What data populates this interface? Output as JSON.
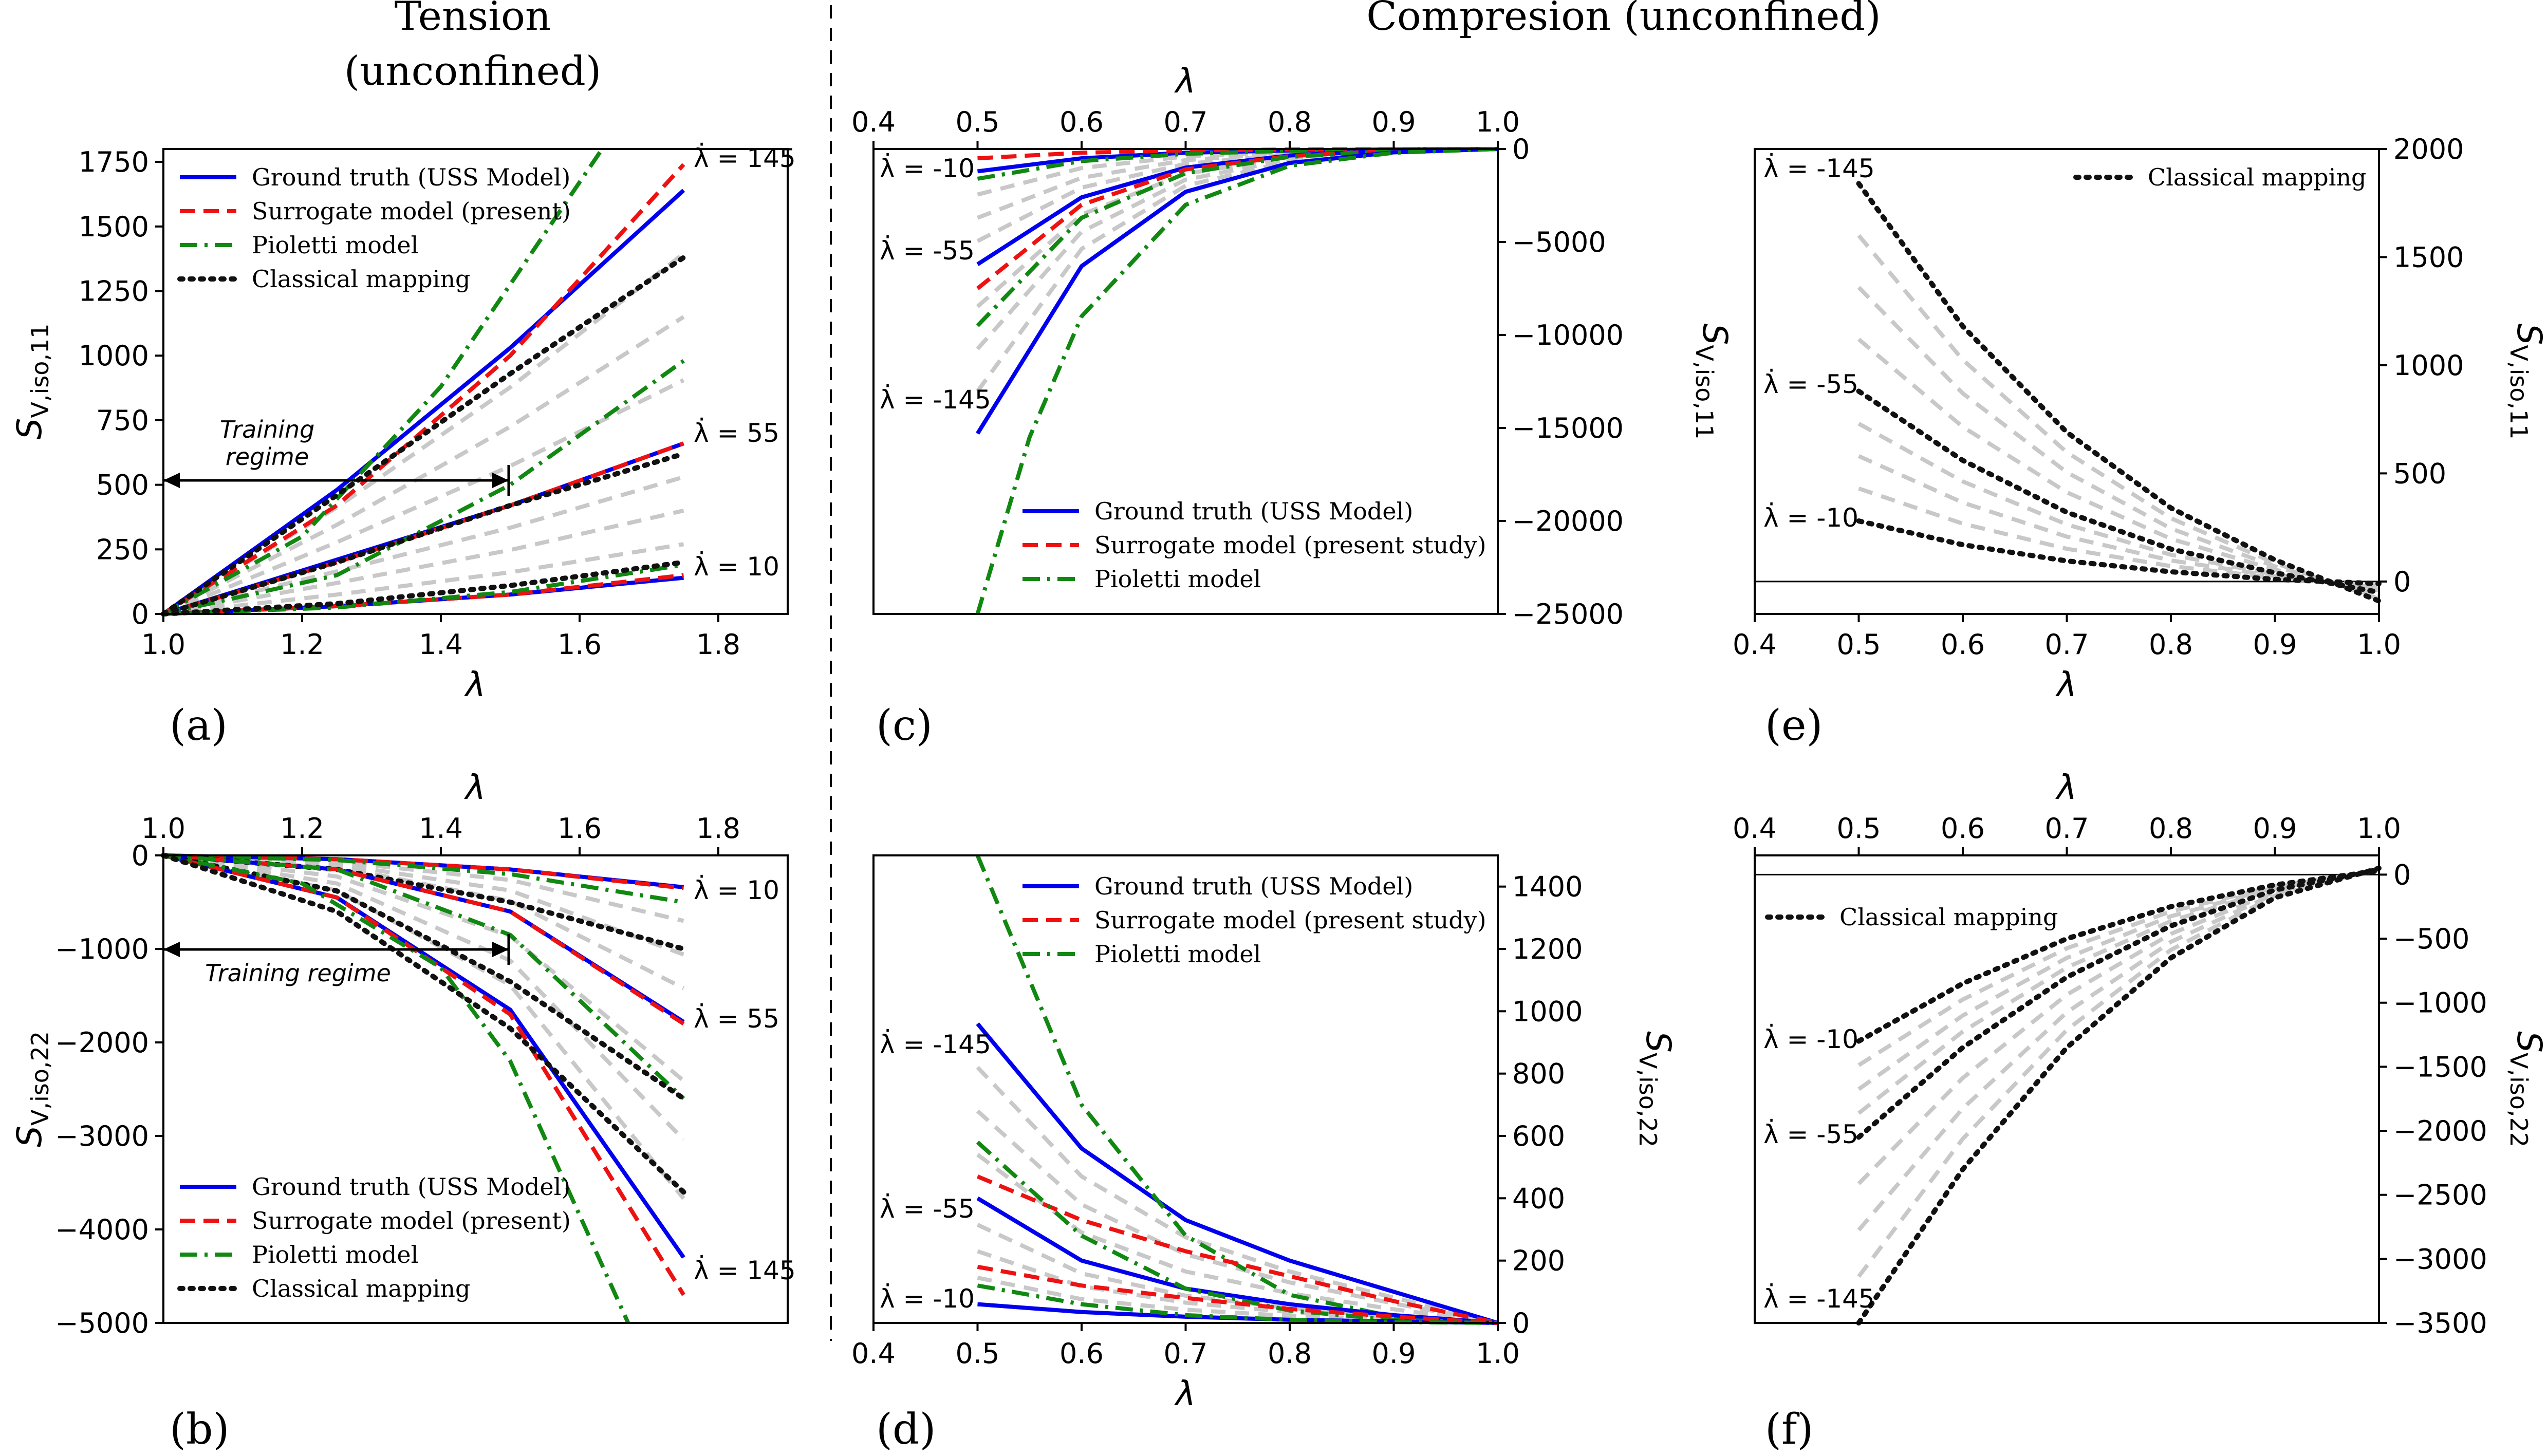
{
  "headings": {
    "tension_line1": "Tension",
    "tension_line2": "(unconfined)",
    "compression": "Compresion (unconfined)"
  },
  "panel_labels": [
    "(a)",
    "(b)",
    "(c)",
    "(d)",
    "(e)",
    "(f)"
  ],
  "legend_labels": {
    "gt": "Ground truth (USS Model)",
    "sur_short": "Surrogate model (present)",
    "sur_long": "Surrogate model (present study)",
    "pio": "Pioletti model",
    "cls": "Classical mapping"
  },
  "annotations": {
    "training_regime": "Training regime",
    "training_word": "Training",
    "regime_word": "regime"
  },
  "colors": {
    "gt": "#0000ee",
    "sur": "#ee1111",
    "pio": "#118811",
    "cls": "#111111",
    "faint": "#c8c8c8"
  },
  "chart_data": [
    {
      "id": "a",
      "type": "line",
      "xlabel": "λ",
      "ylabel": "S_V,iso,11",
      "xlim": [
        1.0,
        1.9
      ],
      "ylim": [
        0,
        1800
      ],
      "xticks": [
        "1.0",
        "1.2",
        "1.4",
        "1.6",
        "1.8"
      ],
      "yticks": [
        "0",
        "250",
        "500",
        "750",
        "1000",
        "1250",
        "1500",
        "1750"
      ],
      "rate_labels": [
        "λ̇ = 145",
        "λ̇ = 55",
        "λ̇ = 10"
      ],
      "series": [
        {
          "name": "Ground truth (USS Model)",
          "rate": 145,
          "x": [
            1.0,
            1.25,
            1.5,
            1.75
          ],
          "y": [
            0,
            480,
            1030,
            1640
          ]
        },
        {
          "name": "Surrogate model (present)",
          "rate": 145,
          "x": [
            1.0,
            1.25,
            1.5,
            1.75
          ],
          "y": [
            0,
            420,
            1000,
            1740
          ]
        },
        {
          "name": "Pioletti model",
          "rate": 145,
          "x": [
            1.0,
            1.2,
            1.4,
            1.63
          ],
          "y": [
            0,
            300,
            880,
            1790
          ]
        },
        {
          "name": "Classical mapping",
          "rate": 145,
          "x": [
            1.0,
            1.25,
            1.5,
            1.75
          ],
          "y": [
            0,
            460,
            930,
            1380
          ]
        },
        {
          "name": "Ground truth (USS Model)",
          "rate": 55,
          "x": [
            1.0,
            1.25,
            1.5,
            1.75
          ],
          "y": [
            0,
            210,
            420,
            660
          ]
        },
        {
          "name": "Surrogate model (present)",
          "rate": 55,
          "x": [
            1.0,
            1.25,
            1.5,
            1.75
          ],
          "y": [
            0,
            200,
            420,
            660
          ]
        },
        {
          "name": "Pioletti model",
          "rate": 55,
          "x": [
            1.0,
            1.25,
            1.5,
            1.75
          ],
          "y": [
            0,
            150,
            500,
            980
          ]
        },
        {
          "name": "Classical mapping",
          "rate": 55,
          "x": [
            1.0,
            1.25,
            1.5,
            1.75
          ],
          "y": [
            0,
            200,
            420,
            620
          ]
        },
        {
          "name": "Ground truth (USS Model)",
          "rate": 10,
          "x": [
            1.0,
            1.25,
            1.5,
            1.75
          ],
          "y": [
            0,
            30,
            75,
            140
          ]
        },
        {
          "name": "Surrogate model (present)",
          "rate": 10,
          "x": [
            1.0,
            1.25,
            1.5,
            1.75
          ],
          "y": [
            0,
            30,
            75,
            150
          ]
        },
        {
          "name": "Pioletti model",
          "rate": 10,
          "x": [
            1.0,
            1.25,
            1.5,
            1.75
          ],
          "y": [
            0,
            25,
            85,
            190
          ]
        },
        {
          "name": "Classical mapping",
          "rate": 10,
          "x": [
            1.0,
            1.25,
            1.5,
            1.75
          ],
          "y": [
            0,
            40,
            110,
            200
          ]
        }
      ]
    },
    {
      "id": "b",
      "type": "line",
      "xlabel": "λ",
      "ylabel": "S_V,iso,22",
      "xlim": [
        1.0,
        1.9
      ],
      "ylim": [
        -5000,
        0
      ],
      "xticks": [
        "1.0",
        "1.2",
        "1.4",
        "1.6",
        "1.8"
      ],
      "yticks": [
        "−5000",
        "−4000",
        "−3000",
        "−2000",
        "−1000",
        "0"
      ],
      "rate_labels": [
        "λ̇ = 10",
        "λ̇ = 55",
        "λ̇ = 145"
      ],
      "series": [
        {
          "name": "Ground truth (USS Model)",
          "rate": 10,
          "x": [
            1.0,
            1.25,
            1.5,
            1.75
          ],
          "y": [
            0,
            -40,
            -150,
            -340
          ]
        },
        {
          "name": "Surrogate model (present)",
          "rate": 10,
          "x": [
            1.0,
            1.25,
            1.5,
            1.75
          ],
          "y": [
            0,
            -40,
            -150,
            -350
          ]
        },
        {
          "name": "Pioletti model",
          "rate": 10,
          "x": [
            1.0,
            1.25,
            1.5,
            1.75
          ],
          "y": [
            0,
            -50,
            -200,
            -500
          ]
        },
        {
          "name": "Classical mapping",
          "rate": 10,
          "x": [
            1.0,
            1.25,
            1.5,
            1.75
          ],
          "y": [
            0,
            -150,
            -500,
            -1000
          ]
        },
        {
          "name": "Ground truth (USS Model)",
          "rate": 55,
          "x": [
            1.0,
            1.25,
            1.5,
            1.75
          ],
          "y": [
            0,
            -150,
            -600,
            -1780
          ]
        },
        {
          "name": "Surrogate model (present)",
          "rate": 55,
          "x": [
            1.0,
            1.25,
            1.5,
            1.75
          ],
          "y": [
            0,
            -150,
            -600,
            -1800
          ]
        },
        {
          "name": "Pioletti model",
          "rate": 55,
          "x": [
            1.0,
            1.25,
            1.5,
            1.75
          ],
          "y": [
            0,
            -150,
            -850,
            -2600
          ]
        },
        {
          "name": "Classical mapping",
          "rate": 55,
          "x": [
            1.0,
            1.25,
            1.5,
            1.75
          ],
          "y": [
            0,
            -380,
            -1350,
            -2600
          ]
        },
        {
          "name": "Ground truth (USS Model)",
          "rate": 145,
          "x": [
            1.0,
            1.25,
            1.5,
            1.75
          ],
          "y": [
            0,
            -450,
            -1650,
            -4300
          ]
        },
        {
          "name": "Surrogate model (present)",
          "rate": 145,
          "x": [
            1.0,
            1.25,
            1.5,
            1.75
          ],
          "y": [
            0,
            -450,
            -1700,
            -4700
          ]
        },
        {
          "name": "Pioletti model",
          "rate": 145,
          "x": [
            1.0,
            1.2,
            1.4,
            1.5,
            1.67
          ],
          "y": [
            0,
            -300,
            -1200,
            -2200,
            -5000
          ]
        },
        {
          "name": "Classical mapping",
          "rate": 145,
          "x": [
            1.0,
            1.25,
            1.5,
            1.75
          ],
          "y": [
            0,
            -600,
            -1850,
            -3600
          ]
        }
      ]
    },
    {
      "id": "c",
      "type": "line",
      "xlabel": "λ",
      "ylabel": "S_V,iso,11",
      "xlim": [
        0.4,
        1.0
      ],
      "ylim": [
        -25000,
        0
      ],
      "xticks": [
        "0.4",
        "0.5",
        "0.6",
        "0.7",
        "0.8",
        "0.9",
        "1.0"
      ],
      "yticks": [
        "−25000",
        "−20000",
        "−15000",
        "−10000",
        "−5000",
        "0"
      ],
      "rate_labels": [
        "λ̇ = -10",
        "λ̇ = -55",
        "λ̇ = -145"
      ],
      "series": [
        {
          "name": "Ground truth (USS Model)",
          "rate": -10,
          "x": [
            0.5,
            0.6,
            0.7,
            0.8,
            0.9,
            1.0
          ],
          "y": [
            -1200,
            -500,
            -200,
            -80,
            -20,
            0
          ]
        },
        {
          "name": "Surrogate model (present study)",
          "rate": -10,
          "x": [
            0.5,
            0.6,
            0.7,
            0.8,
            0.9,
            1.0
          ],
          "y": [
            -500,
            -200,
            -80,
            -30,
            -10,
            0
          ]
        },
        {
          "name": "Pioletti model",
          "rate": -10,
          "x": [
            0.5,
            0.6,
            0.7,
            0.8,
            0.9,
            1.0
          ],
          "y": [
            -1600,
            -650,
            -260,
            -100,
            -30,
            0
          ]
        },
        {
          "name": "Ground truth (USS Model)",
          "rate": -55,
          "x": [
            0.5,
            0.6,
            0.7,
            0.8,
            0.9,
            1.0
          ],
          "y": [
            -6200,
            -2600,
            -1000,
            -350,
            -80,
            0
          ]
        },
        {
          "name": "Surrogate model (present study)",
          "rate": -55,
          "x": [
            0.5,
            0.6,
            0.7,
            0.8,
            0.9,
            1.0
          ],
          "y": [
            -7500,
            -3000,
            -1100,
            -380,
            -90,
            0
          ]
        },
        {
          "name": "Pioletti model",
          "rate": -55,
          "x": [
            0.5,
            0.6,
            0.7,
            0.8,
            0.9,
            1.0
          ],
          "y": [
            -9500,
            -3700,
            -1300,
            -420,
            -100,
            0
          ]
        },
        {
          "name": "Ground truth (USS Model)",
          "rate": -145,
          "x": [
            0.5,
            0.6,
            0.7,
            0.8,
            0.9,
            1.0
          ],
          "y": [
            -15300,
            -6300,
            -2300,
            -750,
            -180,
            0
          ]
        },
        {
          "name": "Pioletti model",
          "rate": -145,
          "x": [
            0.5,
            0.55,
            0.6,
            0.7,
            0.8,
            0.9,
            1.0
          ],
          "y": [
            -25000,
            -15500,
            -9000,
            -3000,
            -900,
            -200,
            0
          ]
        }
      ]
    },
    {
      "id": "d",
      "type": "line",
      "xlabel": "λ",
      "ylabel": "S_V,iso,22",
      "xlim": [
        0.4,
        1.0
      ],
      "ylim": [
        0,
        1500
      ],
      "xticks": [
        "0.4",
        "0.5",
        "0.6",
        "0.7",
        "0.8",
        "0.9",
        "1.0"
      ],
      "yticks": [
        "0",
        "200",
        "400",
        "600",
        "800",
        "1000",
        "1200",
        "1400"
      ],
      "rate_labels": [
        "λ̇ = -145",
        "λ̇ = -55",
        "λ̇ = -10"
      ],
      "series": [
        {
          "name": "Ground truth (USS Model)",
          "rate": -145,
          "x": [
            0.5,
            0.6,
            0.7,
            0.8,
            0.9,
            1.0
          ],
          "y": [
            960,
            560,
            330,
            200,
            100,
            0
          ]
        },
        {
          "name": "Pioletti model",
          "rate": -145,
          "x": [
            0.5,
            0.6,
            0.7,
            0.8,
            0.9,
            1.0
          ],
          "y": [
            1500,
            700,
            280,
            90,
            20,
            0
          ]
        },
        {
          "name": "Ground truth (USS Model)",
          "rate": -55,
          "x": [
            0.5,
            0.6,
            0.7,
            0.8,
            0.9,
            1.0
          ],
          "y": [
            400,
            200,
            110,
            60,
            25,
            0
          ]
        },
        {
          "name": "Surrogate model (present study)",
          "rate": -55,
          "x": [
            0.5,
            0.6,
            0.7,
            0.8,
            0.9,
            1.0
          ],
          "y": [
            470,
            330,
            230,
            150,
            70,
            0
          ]
        },
        {
          "name": "Pioletti model",
          "rate": -55,
          "x": [
            0.5,
            0.6,
            0.7,
            0.8,
            0.9,
            1.0
          ],
          "y": [
            580,
            280,
            110,
            40,
            10,
            0
          ]
        },
        {
          "name": "Ground truth (USS Model)",
          "rate": -10,
          "x": [
            0.5,
            0.6,
            0.7,
            0.8,
            0.9,
            1.0
          ],
          "y": [
            60,
            35,
            20,
            10,
            5,
            0
          ]
        },
        {
          "name": "Surrogate model (present study)",
          "rate": -10,
          "x": [
            0.5,
            0.6,
            0.7,
            0.8,
            0.9,
            1.0
          ],
          "y": [
            180,
            120,
            80,
            45,
            20,
            0
          ]
        },
        {
          "name": "Pioletti model",
          "rate": -10,
          "x": [
            0.5,
            0.6,
            0.7,
            0.8,
            0.9,
            1.0
          ],
          "y": [
            120,
            60,
            25,
            10,
            3,
            0
          ]
        }
      ]
    },
    {
      "id": "e",
      "type": "line",
      "xlabel": "λ",
      "ylabel": "S_V,iso,11",
      "xlim": [
        0.4,
        1.0
      ],
      "ylim": [
        -150,
        2000
      ],
      "xticks": [
        "0.4",
        "0.5",
        "0.6",
        "0.7",
        "0.8",
        "0.9",
        "1.0"
      ],
      "yticks": [
        "0",
        "500",
        "1000",
        "1500",
        "2000"
      ],
      "rate_labels": [
        "λ̇ = -145",
        "λ̇ = -55",
        "λ̇ = -10"
      ],
      "series": [
        {
          "name": "Classical mapping",
          "rate": -145,
          "x": [
            0.5,
            0.6,
            0.7,
            0.8,
            0.9,
            1.0
          ],
          "y": [
            1840,
            1180,
            690,
            340,
            100,
            -90
          ]
        },
        {
          "name": "Classical mapping",
          "rate": -55,
          "x": [
            0.5,
            0.6,
            0.7,
            0.8,
            0.9,
            1.0
          ],
          "y": [
            880,
            560,
            320,
            150,
            40,
            -50
          ]
        },
        {
          "name": "Classical mapping",
          "rate": -10,
          "x": [
            0.5,
            0.6,
            0.7,
            0.8,
            0.9,
            1.0
          ],
          "y": [
            280,
            170,
            95,
            45,
            10,
            -10
          ]
        }
      ]
    },
    {
      "id": "f",
      "type": "line",
      "xlabel": "λ",
      "ylabel": "S_V,iso,22",
      "xlim": [
        0.4,
        1.0
      ],
      "ylim": [
        -3500,
        150
      ],
      "xticks": [
        "0.4",
        "0.5",
        "0.6",
        "0.7",
        "0.8",
        "0.9",
        "1.0"
      ],
      "yticks": [
        "−3500",
        "−3000",
        "−2500",
        "−2000",
        "−1500",
        "−1000",
        "−500",
        "0"
      ],
      "rate_labels": [
        "λ̇ = -10",
        "λ̇ = -55",
        "λ̇ = -145"
      ],
      "series": [
        {
          "name": "Classical mapping",
          "rate": -10,
          "x": [
            0.5,
            0.6,
            0.7,
            0.8,
            0.9,
            1.0
          ],
          "y": [
            -1300,
            -850,
            -500,
            -250,
            -80,
            30
          ]
        },
        {
          "name": "Classical mapping",
          "rate": -55,
          "x": [
            0.5,
            0.6,
            0.7,
            0.8,
            0.9,
            1.0
          ],
          "y": [
            -2050,
            -1350,
            -800,
            -400,
            -120,
            40
          ]
        },
        {
          "name": "Classical mapping",
          "rate": -145,
          "x": [
            0.5,
            0.6,
            0.7,
            0.8,
            0.9,
            1.0
          ],
          "y": [
            -3500,
            -2300,
            -1350,
            -650,
            -180,
            50
          ]
        }
      ]
    }
  ]
}
